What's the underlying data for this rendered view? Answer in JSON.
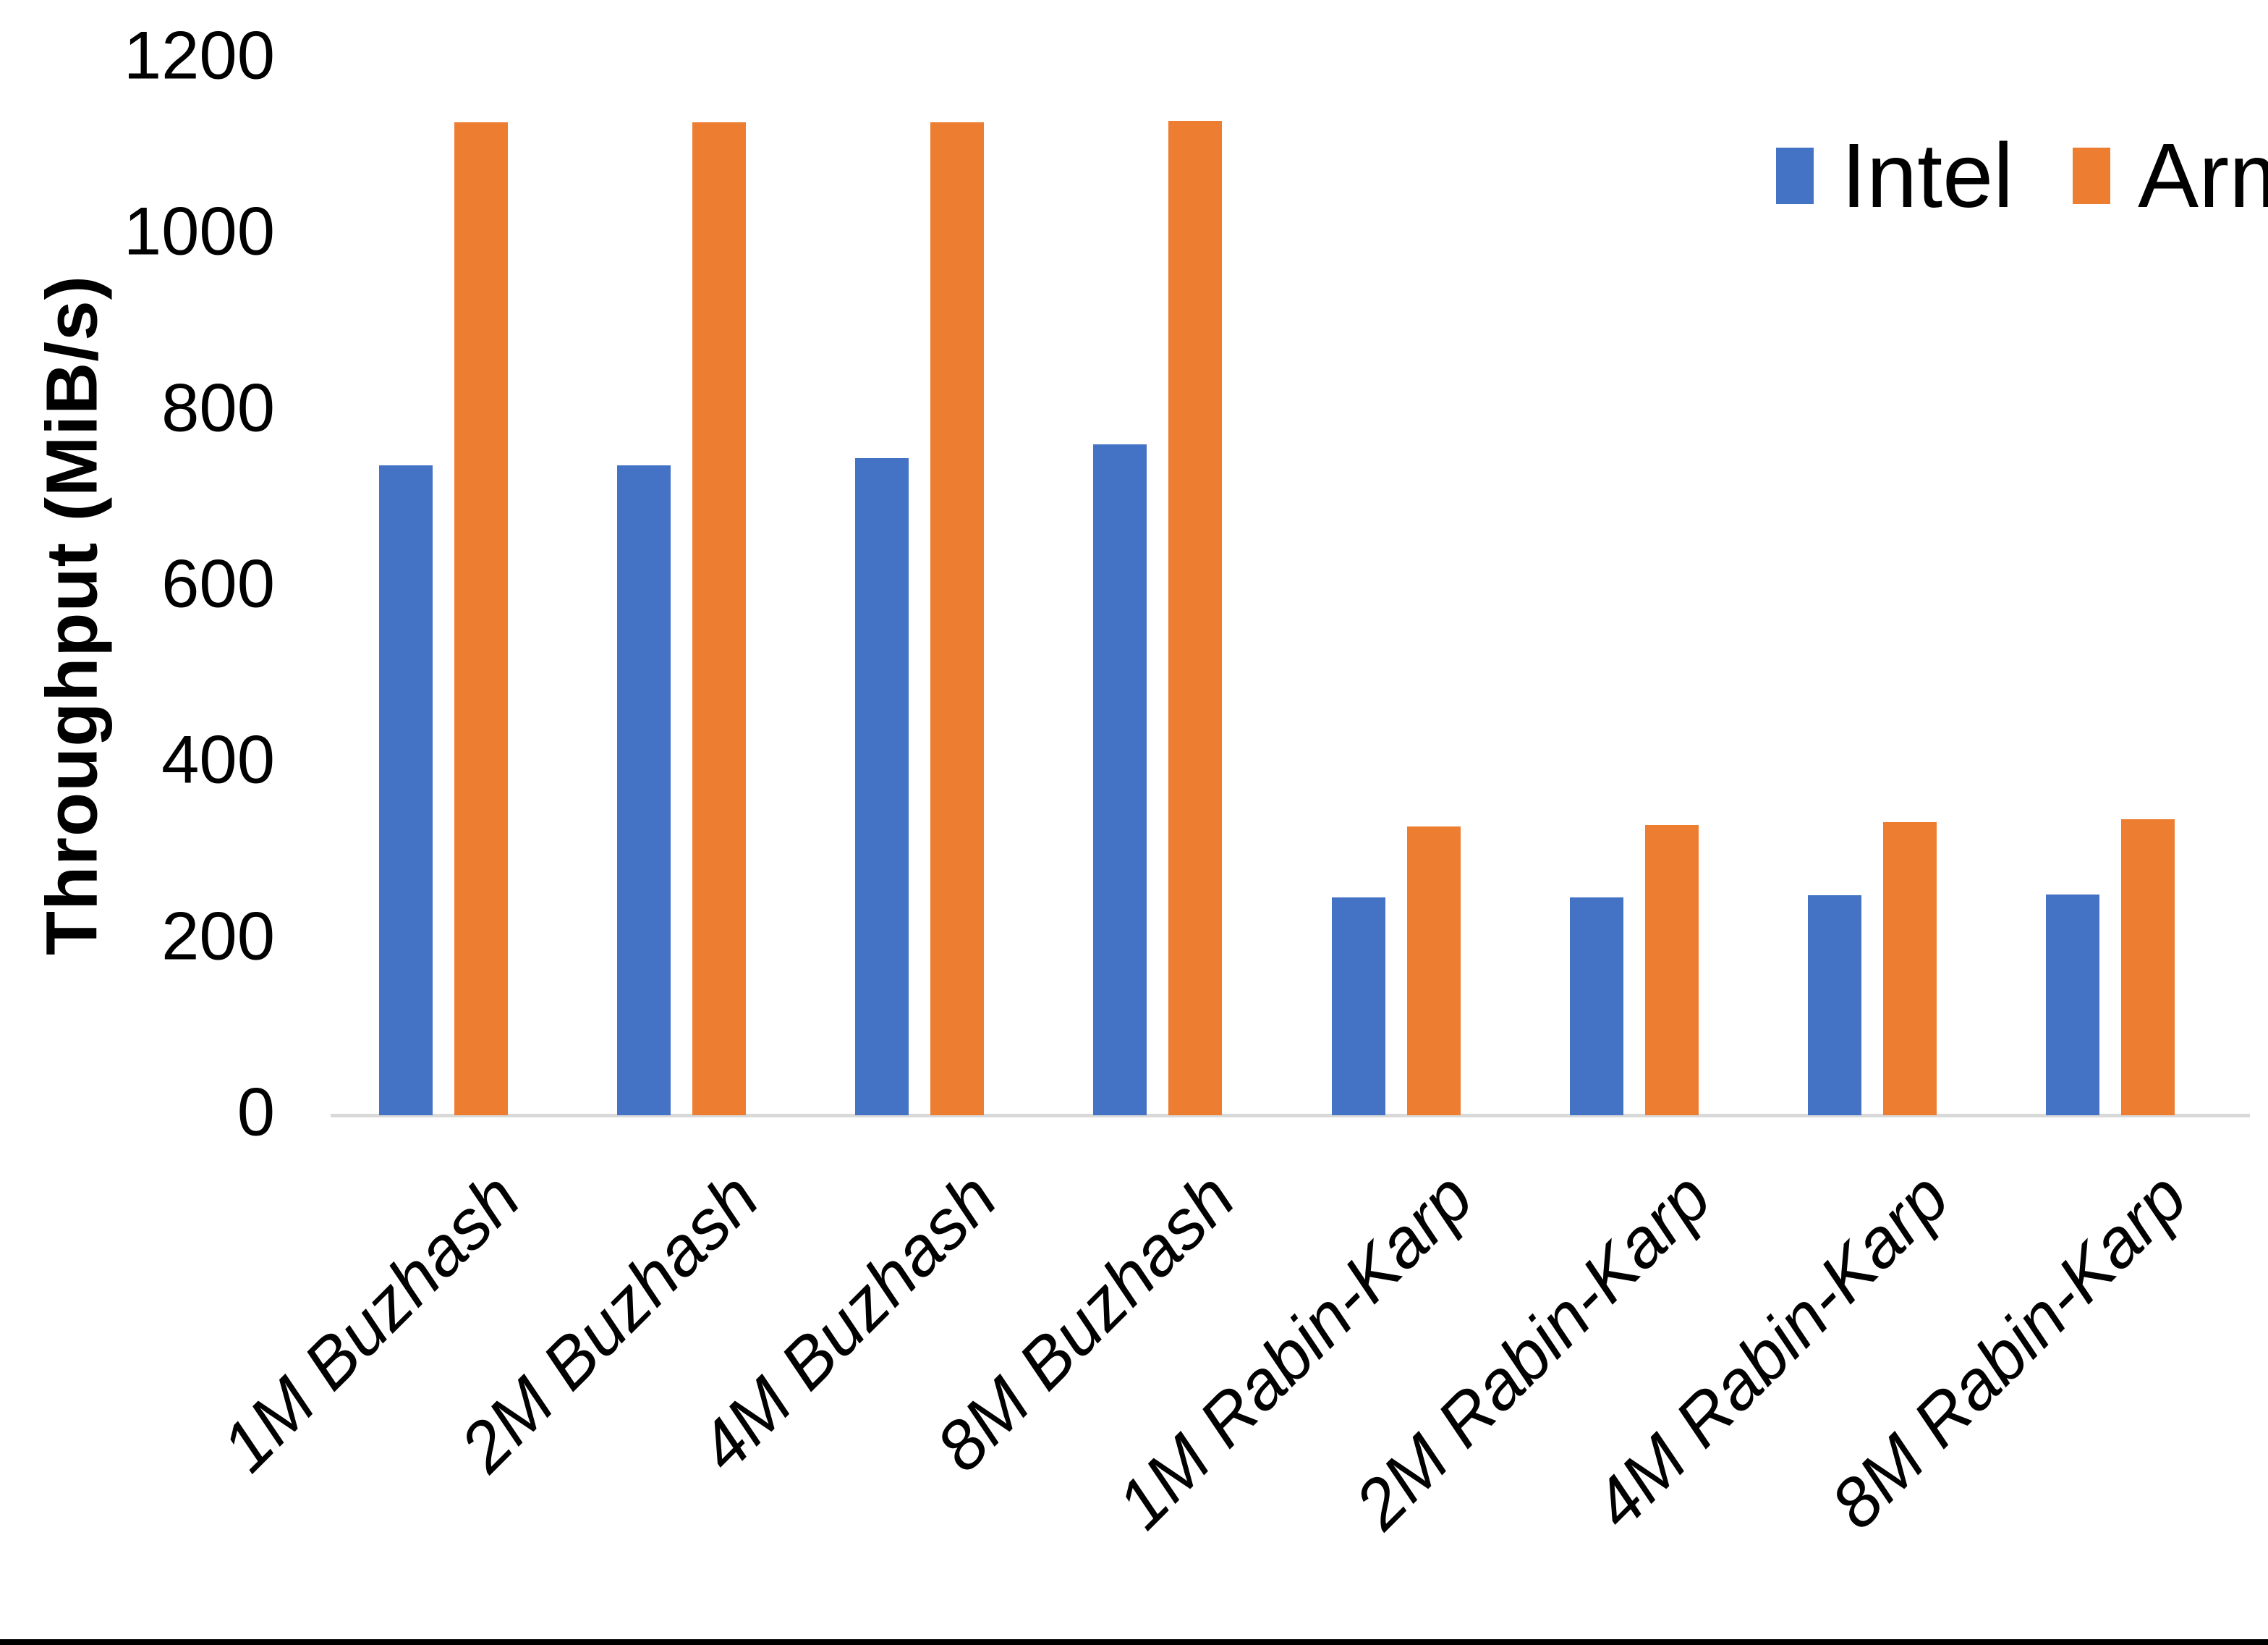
{
  "page": {
    "background": "#ffffff",
    "bottom_border_color": "#000000"
  },
  "chart_data": {
    "type": "bar",
    "title": "",
    "xlabel": "",
    "ylabel": "Throughput (MiB/s)",
    "ylim": [
      0,
      1200
    ],
    "yticks": [
      "0",
      "200",
      "400",
      "600",
      "800",
      "1000",
      "1200"
    ],
    "ytick_values": [
      0,
      200,
      400,
      600,
      800,
      1000,
      1200
    ],
    "grid": false,
    "legend_position": "top-right",
    "axis_line_color": "#d9d9d9",
    "categories": [
      "1M Buzhash",
      "2M Buzhash",
      "4M Buzhash",
      "8M Buzhash",
      "1M Rabin-Karp",
      "2M Rabin-Karp",
      "4M Rabin-Karp",
      "8M Rabin-Karp"
    ],
    "series": [
      {
        "name": "Intel",
        "color": "#4472C4",
        "values": [
          738,
          738,
          746,
          762,
          247,
          247,
          250,
          251
        ]
      },
      {
        "name": "Arm",
        "color": "#ED7D31",
        "values": [
          1128,
          1128,
          1128,
          1129,
          328,
          330,
          333,
          336
        ]
      }
    ]
  }
}
